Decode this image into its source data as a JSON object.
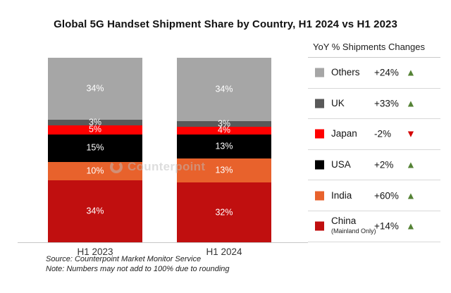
{
  "title": "Global 5G Handset Shipment Share by Country, H1 2024 vs H1 2023",
  "watermark": "Counterpoint",
  "legend": {
    "title": "YoY % Shipments Changes",
    "up_color": "#548235",
    "down_color": "#d40000",
    "items": [
      {
        "name": "Others",
        "sub": "",
        "change": "+24%",
        "direction": "up",
        "color": "#a6a6a6"
      },
      {
        "name": "UK",
        "sub": "",
        "change": "+33%",
        "direction": "up",
        "color": "#595959"
      },
      {
        "name": "Japan",
        "sub": "",
        "change": "-2%",
        "direction": "down",
        "color": "#ff0000"
      },
      {
        "name": "USA",
        "sub": "",
        "change": "+2%",
        "direction": "up",
        "color": "#000000"
      },
      {
        "name": "India",
        "sub": "",
        "change": "+60%",
        "direction": "up",
        "color": "#e8622c"
      },
      {
        "name": "China",
        "sub": "(Mainland Only)",
        "change": "+14%",
        "direction": "up",
        "color": "#c00f0f"
      }
    ]
  },
  "chart_data": {
    "type": "bar",
    "stacked": true,
    "categories": [
      "H1 2023",
      "H1 2024"
    ],
    "series": [
      {
        "name": "China (Mainland Only)",
        "color": "#c00f0f",
        "values": [
          34,
          32
        ]
      },
      {
        "name": "India",
        "color": "#e8622c",
        "values": [
          10,
          13
        ]
      },
      {
        "name": "USA",
        "color": "#000000",
        "values": [
          15,
          13
        ]
      },
      {
        "name": "Japan",
        "color": "#ff0000",
        "values": [
          5,
          4
        ]
      },
      {
        "name": "UK",
        "color": "#595959",
        "values": [
          3,
          3
        ]
      },
      {
        "name": "Others",
        "color": "#a6a6a6",
        "values": [
          34,
          34
        ]
      }
    ],
    "value_suffix": "%",
    "ylim": [
      0,
      100
    ],
    "grid": false,
    "legend_position": "right",
    "yoy_changes": {
      "Others": "+24%",
      "UK": "+33%",
      "Japan": "-2%",
      "USA": "+2%",
      "India": "+60%",
      "China (Mainland Only)": "+14%"
    }
  },
  "footnotes": {
    "source": "Source: Counterpoint Market Monitor Service",
    "note": "Note: Numbers may not add to 100% due to rounding"
  }
}
